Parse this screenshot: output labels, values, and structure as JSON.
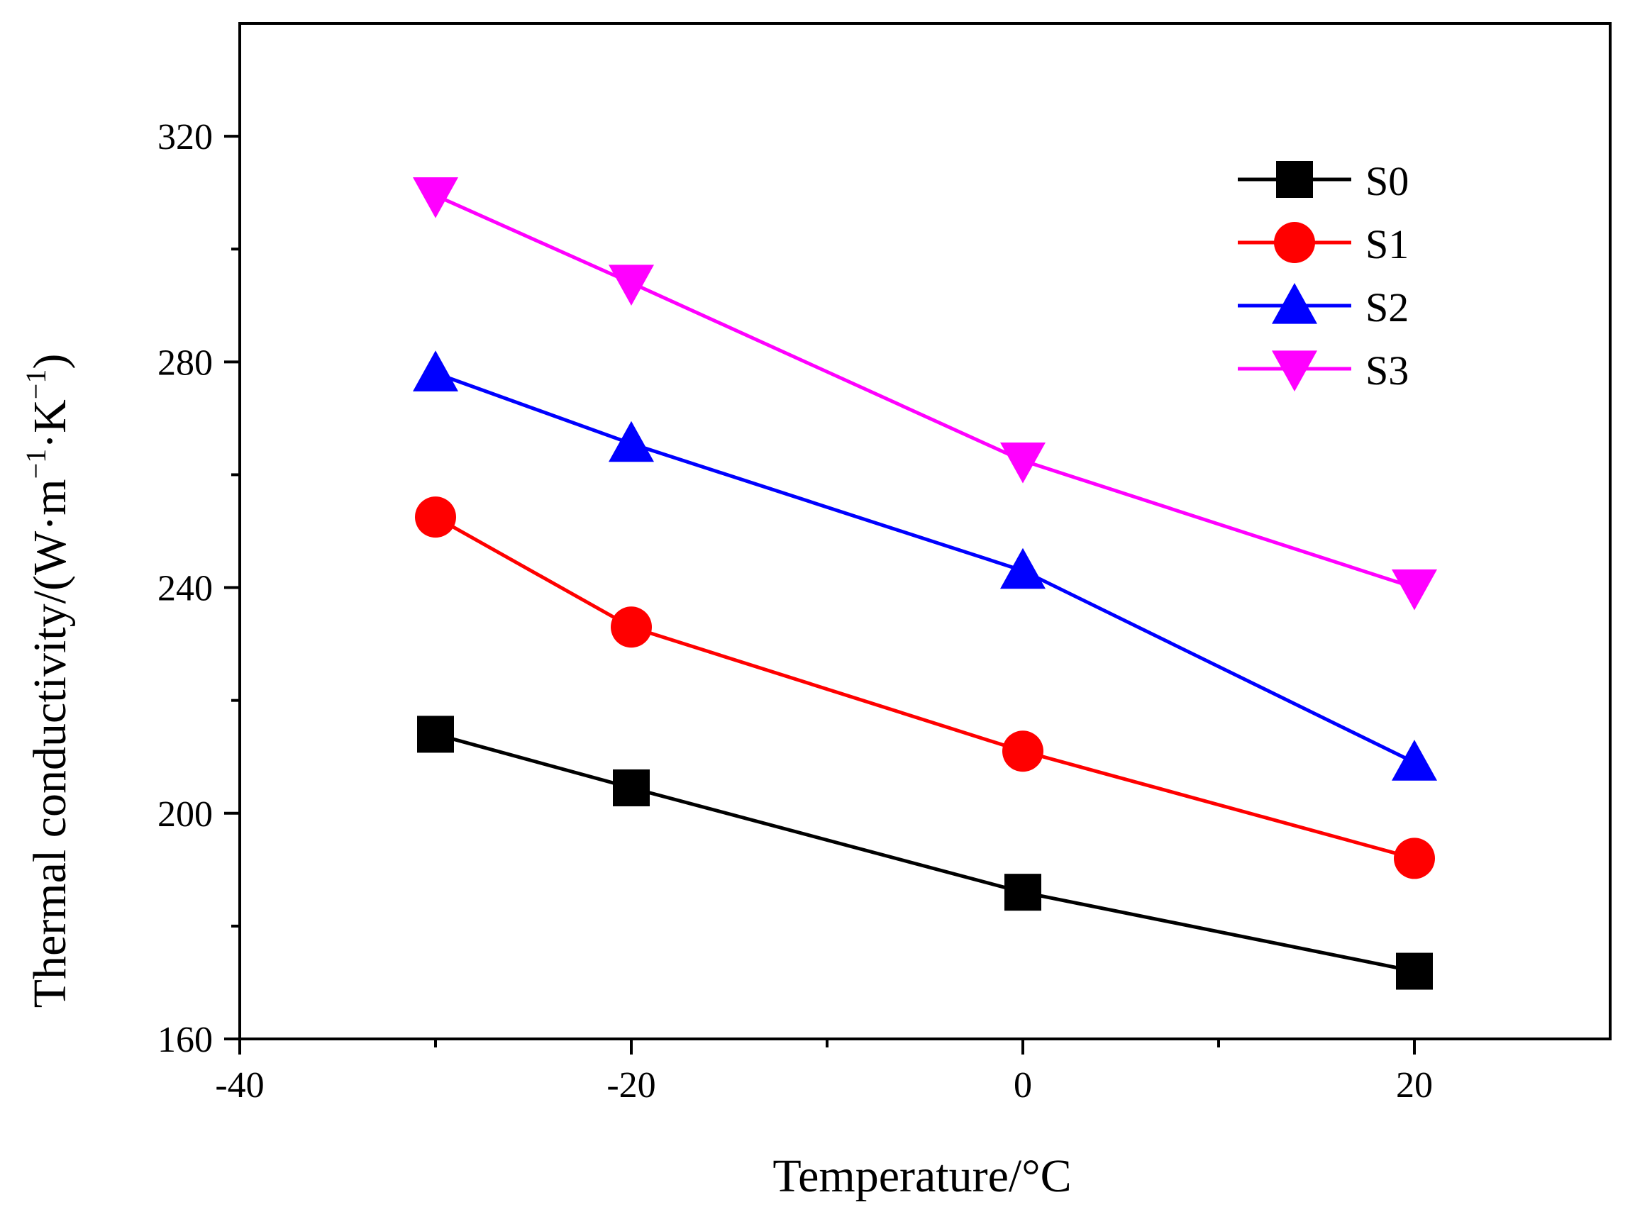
{
  "chart_data": {
    "type": "line",
    "title": "",
    "xlabel": "Temperature/°C",
    "ylabel": {
      "base": "Thermal conductivity/(W·m",
      "sup1": "−1",
      "mid": "·K",
      "sup2": "−1",
      "end": ")"
    },
    "xlim": [
      -40,
      30
    ],
    "ylim": [
      160,
      340
    ],
    "xticks": [
      -40,
      -20,
      0,
      20
    ],
    "xticks_minor": [
      -30,
      -10,
      10
    ],
    "yticks": [
      160,
      200,
      240,
      280,
      320
    ],
    "yticks_minor": [
      180,
      220,
      260,
      300
    ],
    "x": [
      -30,
      -20,
      0,
      20
    ],
    "legend_position": "top-right",
    "grid": false,
    "series": [
      {
        "name": "S0",
        "color": "#000000",
        "marker": "square",
        "values": [
          214,
          204.5,
          186,
          172
        ]
      },
      {
        "name": "S1",
        "color": "#ff0000",
        "marker": "circle",
        "values": [
          252.5,
          233,
          211,
          192
        ]
      },
      {
        "name": "S2",
        "color": "#0000ff",
        "marker": "triangle-up",
        "values": [
          278,
          265.5,
          243,
          209
        ]
      },
      {
        "name": "S3",
        "color": "#ff00ff",
        "marker": "triangle-down",
        "values": [
          309.5,
          294,
          262.5,
          240
        ]
      }
    ]
  }
}
